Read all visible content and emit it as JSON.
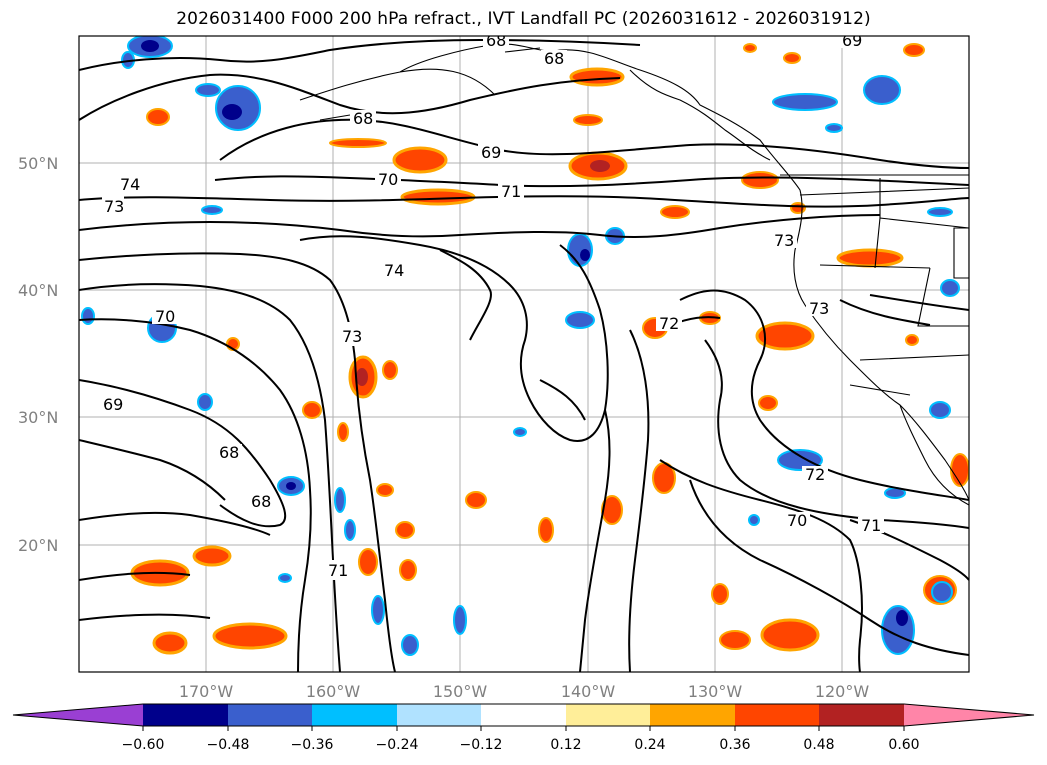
{
  "title": "2026031400 F000 200 hPa refract., IVT Landfall PC (2026031612 - 2026031912)",
  "lat_labels": [
    "50°N",
    "40°N",
    "30°N",
    "20°N"
  ],
  "lon_labels": [
    "170°W",
    "160°W",
    "150°W",
    "140°W",
    "130°W",
    "120°W"
  ],
  "colorbar": {
    "colors": [
      "#9a3fd3",
      "#00008b",
      "#3a5fcd",
      "#00bfff",
      "#b0e2ff",
      "#ffffff",
      "#ffee99",
      "#ffa500",
      "#ff4500",
      "#b22222",
      "#ff85a8"
    ],
    "ticks": [
      "−0.60",
      "−0.48",
      "−0.36",
      "−0.24",
      "−0.12",
      "0.12",
      "0.24",
      "0.36",
      "0.48",
      "0.60"
    ]
  },
  "contour_labels": [
    "68",
    "68",
    "69",
    "68",
    "69",
    "70",
    "71",
    "73",
    "74",
    "73",
    "74",
    "70",
    "73",
    "72",
    "73",
    "69",
    "68",
    "68",
    "71",
    "72",
    "70",
    "71"
  ]
}
